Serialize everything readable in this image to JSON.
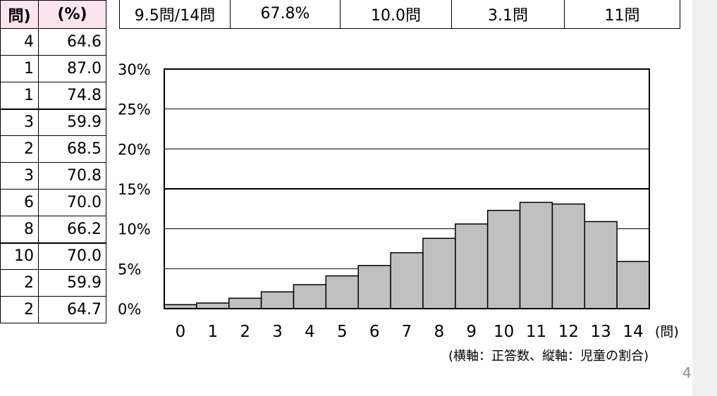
{
  "left_table": {
    "headers": [
      "問)",
      "(%)"
    ],
    "rows": [
      [
        "4",
        "64.6"
      ],
      [
        "1",
        "87.0"
      ],
      [
        "1",
        "74.8"
      ],
      [
        "3",
        "59.9"
      ],
      [
        "2",
        "68.5"
      ],
      [
        "3",
        "70.8"
      ],
      [
        "6",
        "70.0"
      ],
      [
        "8",
        "66.2"
      ],
      [
        "10",
        "70.0"
      ],
      [
        "2",
        "59.9"
      ],
      [
        "2",
        "64.7"
      ]
    ]
  },
  "stats": [
    "9.5問/14問",
    "67.8%",
    "10.0問",
    "3.1問",
    "11問"
  ],
  "chart_data": {
    "type": "bar",
    "categories": [
      "0",
      "1",
      "2",
      "3",
      "4",
      "5",
      "6",
      "7",
      "8",
      "9",
      "10",
      "11",
      "12",
      "13",
      "14"
    ],
    "values": [
      0.5,
      0.7,
      1.3,
      2.1,
      3.0,
      4.1,
      5.4,
      7.0,
      8.8,
      10.6,
      12.3,
      13.3,
      13.1,
      10.9,
      5.9
    ],
    "ylim": [
      0,
      30
    ],
    "yticks": [
      0,
      5,
      10,
      15,
      20,
      25,
      30
    ],
    "ytick_labels": [
      "0%",
      "5%",
      "10%",
      "15%",
      "20%",
      "25%",
      "30%"
    ],
    "x_unit": "(問)",
    "axis_note": "(横軸：正答数、縦軸：児童の割合)",
    "grid": true,
    "bar_color": "#c0c0c0"
  },
  "page_number": "4"
}
